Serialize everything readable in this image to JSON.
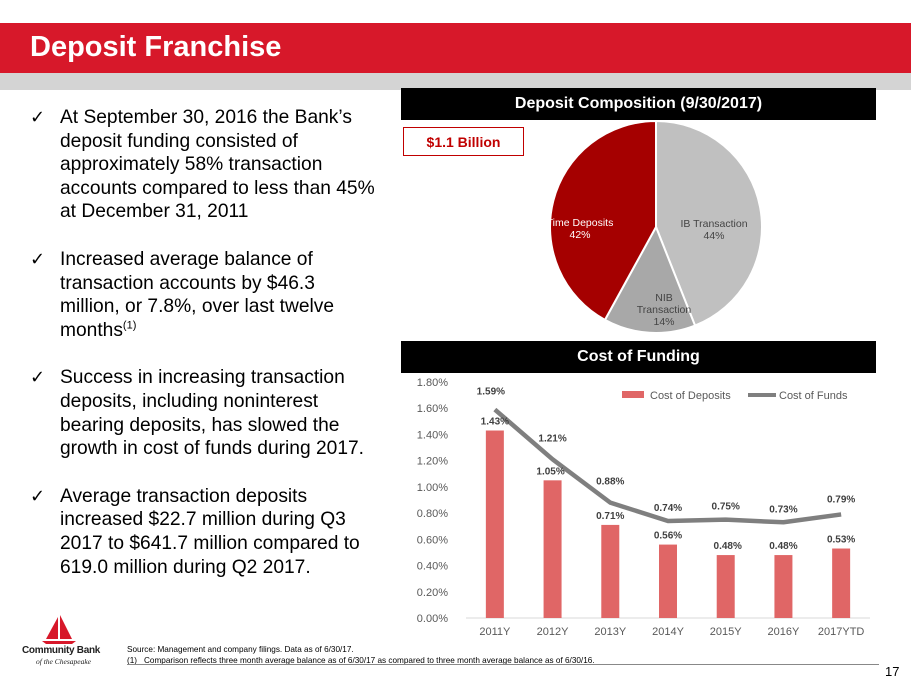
{
  "title": "Deposit Franchise",
  "bullets": [
    {
      "text": "At September 30, 2016 the Bank’s deposit funding consisted of approximately 58% transaction accounts compared to less than 45% at December 31, 2011",
      "sup": ""
    },
    {
      "text": "Increased average balance of transaction accounts by $46.3 million, or 7.8%, over last twelve months",
      "sup": "(1)"
    },
    {
      "text": "Success in increasing transaction deposits, including noninterest bearing deposits, has slowed the growth in cost of funds during 2017.",
      "sup": ""
    },
    {
      "text": "Average transaction deposits increased $22.7 million during Q3 2017 to $641.7 million compared to 619.0 million during Q2 2017.",
      "sup": ""
    }
  ],
  "check_icon": "check-icon",
  "composition_header": "Deposit Composition (9/30/2017)",
  "billion_label": "$1.1 Billion",
  "funding_header": "Cost of Funding",
  "footnotes": {
    "source": "Source: Management and company filings. Data as of 6/30/17.",
    "note_num": "(1)",
    "note_text": "Comparison reflects three month average balance as of 6/30/17 as compared to three month average balance as of 6/30/16."
  },
  "page_number": "17",
  "logo": {
    "name": "Community Bank",
    "sub": "of the Chesapeake",
    "icon": "sailboat-icon"
  },
  "colors": {
    "accent_red": "#d7182a",
    "dark_red": "#a50000",
    "bar_red": "#e06666",
    "line_grey": "#7f7f7f",
    "pie_light_grey": "#c0c0c0",
    "pie_mid_grey": "#a8a8a8"
  },
  "chart_data": [
    {
      "type": "pie",
      "title": "Deposit Composition (9/30/2017)",
      "slices": [
        {
          "label": "IB Transaction",
          "value": 44,
          "pct_label": "44%",
          "color": "#c0c0c0"
        },
        {
          "label": "NIB Transaction",
          "value": 14,
          "pct_label": "14%",
          "color": "#a8a8a8"
        },
        {
          "label": "Time Deposits",
          "value": 42,
          "pct_label": "42%",
          "color": "#a50000"
        }
      ]
    },
    {
      "type": "bar",
      "title": "Cost of Funding",
      "categories": [
        "2011Y",
        "2012Y",
        "2013Y",
        "2014Y",
        "2015Y",
        "2016Y",
        "2017YTD"
      ],
      "series": [
        {
          "name": "Cost of Deposits",
          "kind": "bar",
          "values": [
            1.43,
            1.05,
            0.71,
            0.56,
            0.48,
            0.48,
            0.53
          ],
          "labels": [
            "1.43%",
            "1.05%",
            "0.71%",
            "0.56%",
            "0.48%",
            "0.48%",
            "0.53%"
          ]
        },
        {
          "name": "Cost of Funds",
          "kind": "line",
          "values": [
            1.59,
            1.21,
            0.88,
            0.74,
            0.75,
            0.73,
            0.79
          ],
          "labels": [
            "1.59%",
            "1.21%",
            "0.88%",
            "0.74%",
            "0.75%",
            "0.73%",
            "0.79%"
          ]
        }
      ],
      "ylim": [
        0,
        1.8
      ],
      "yticks": [
        "0.00%",
        "0.20%",
        "0.40%",
        "0.60%",
        "0.80%",
        "1.00%",
        "1.20%",
        "1.40%",
        "1.60%",
        "1.80%"
      ],
      "legend": "top-right",
      "grid": false
    }
  ]
}
